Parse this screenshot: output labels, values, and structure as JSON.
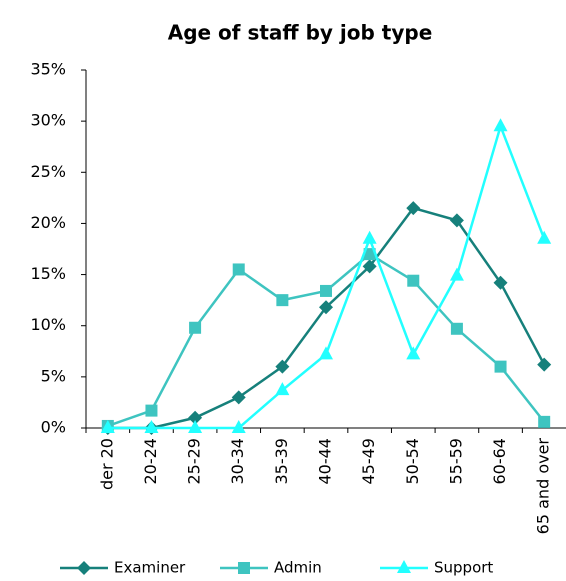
{
  "chart_data": {
    "type": "line",
    "title": "Age of staff by job type",
    "categories": [
      "der 20",
      "20-24",
      "25-29",
      "30-34",
      "35-39",
      "40-44",
      "45-49",
      "50-54",
      "55-59",
      "60-64",
      "65 and over"
    ],
    "series": [
      {
        "name": "Examiner",
        "color": "#16807b",
        "marker": "diamond",
        "values": [
          0,
          0,
          1,
          3,
          6,
          11.8,
          15.8,
          21.5,
          20.3,
          14.2,
          6.2
        ]
      },
      {
        "name": "Admin",
        "color": "#3ec4c0",
        "marker": "square",
        "values": [
          0.2,
          1.7,
          9.8,
          15.5,
          12.5,
          13.4,
          17,
          14.4,
          9.7,
          6,
          0.6
        ]
      },
      {
        "name": "Support",
        "color": "#22ffff",
        "marker": "triangle",
        "values": [
          0,
          0,
          0,
          0,
          3.7,
          7.2,
          18.5,
          7.2,
          14.9,
          29.5,
          18.5
        ]
      }
    ],
    "ylim": [
      0,
      35
    ],
    "yticks": [
      {
        "value": 0,
        "label": "0%"
      },
      {
        "value": 5,
        "label": "5%"
      },
      {
        "value": 10,
        "label": "10%"
      },
      {
        "value": 15,
        "label": "15%"
      },
      {
        "value": 20,
        "label": "20%"
      },
      {
        "value": 25,
        "label": "25%"
      },
      {
        "value": 30,
        "label": "30%"
      },
      {
        "value": 35,
        "label": "35%"
      }
    ],
    "grid": false,
    "legend": "bottom"
  }
}
